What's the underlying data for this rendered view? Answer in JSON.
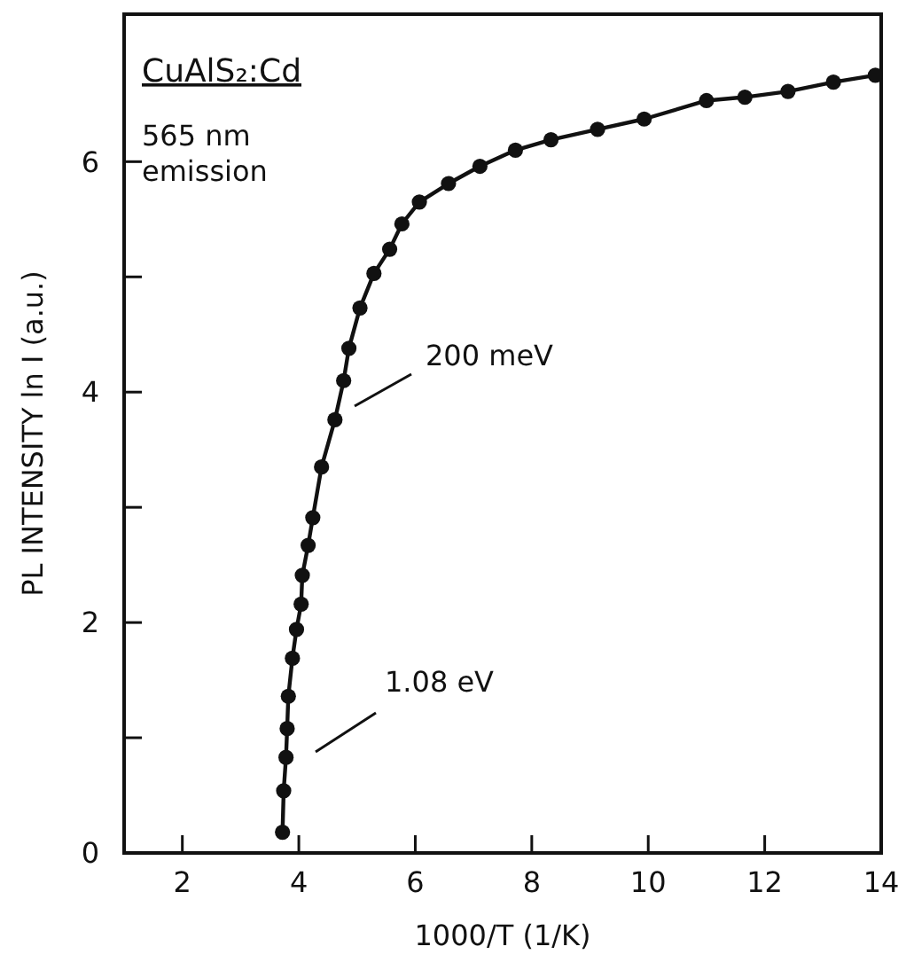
{
  "chart_data": {
    "type": "line",
    "title": "CuAlS₂:Cd",
    "subtitle": "565 nm emission",
    "xlabel": "1000/T (1/K)",
    "ylabel": "PL INTENSITY ln I (a.u.)",
    "x": [
      3.72,
      3.74,
      3.78,
      3.8,
      3.82,
      3.89,
      3.96,
      4.04,
      4.06,
      4.16,
      4.24,
      4.39,
      4.62,
      4.77,
      4.86,
      5.05,
      5.29,
      5.56,
      5.77,
      6.07,
      6.57,
      7.11,
      7.72,
      8.33,
      9.13,
      9.93,
      11.0,
      11.66,
      12.4,
      13.18,
      13.9
    ],
    "series": [
      {
        "color": "#111111",
        "values": [
          0.18,
          0.54,
          0.83,
          1.08,
          1.36,
          1.69,
          1.94,
          2.16,
          2.41,
          2.67,
          2.91,
          3.35,
          3.76,
          4.1,
          4.38,
          4.73,
          5.03,
          5.24,
          5.46,
          5.65,
          5.81,
          5.96,
          6.1,
          6.19,
          6.28,
          6.37,
          6.53,
          6.56,
          6.61,
          6.69,
          6.75
        ]
      }
    ],
    "xlim": [
      1,
      14
    ],
    "ylim": [
      0,
      7.28
    ],
    "xticks": [
      2,
      4,
      6,
      8,
      10,
      12,
      14
    ],
    "yticks": [
      0,
      {
        "value": 1,
        "label": null
      },
      2,
      {
        "value": 3,
        "label": null
      },
      4,
      {
        "value": 5,
        "label": null
      },
      6
    ],
    "annotations": [
      "200 meV",
      "1.08 eV"
    ],
    "marker": "circle",
    "line_style": "solid",
    "grid": false
  }
}
